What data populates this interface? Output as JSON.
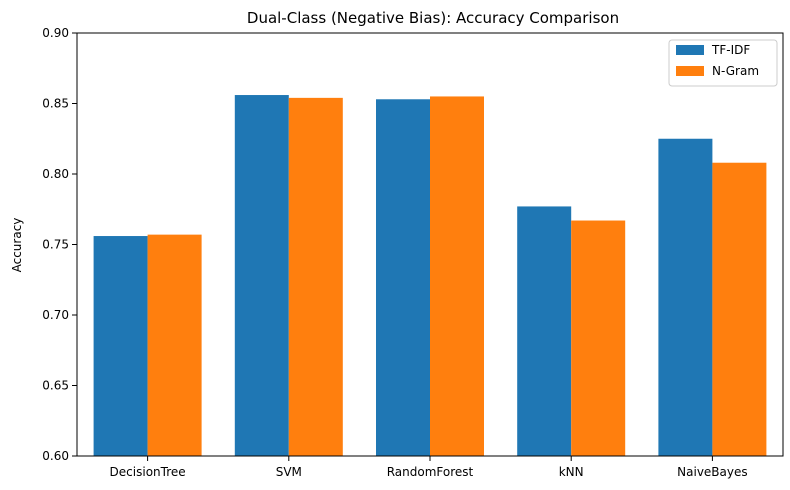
{
  "chart_data": {
    "type": "bar",
    "title": "Dual-Class (Negative Bias): Accuracy Comparison",
    "xlabel": "",
    "ylabel": "Accuracy",
    "ylim": [
      0.6,
      0.9
    ],
    "yticks": [
      "0.60",
      "0.65",
      "0.70",
      "0.75",
      "0.80",
      "0.85",
      "0.90"
    ],
    "categories": [
      "DecisionTree",
      "SVM",
      "RandomForest",
      "kNN",
      "NaiveBayes"
    ],
    "series": [
      {
        "name": "TF-IDF",
        "color": "#1f77b4",
        "values": [
          0.756,
          0.856,
          0.853,
          0.777,
          0.825
        ]
      },
      {
        "name": "N-Gram",
        "color": "#ff7f0e",
        "values": [
          0.757,
          0.854,
          0.855,
          0.767,
          0.808
        ]
      }
    ],
    "grid": false,
    "legend": {
      "position": "top-right"
    }
  }
}
